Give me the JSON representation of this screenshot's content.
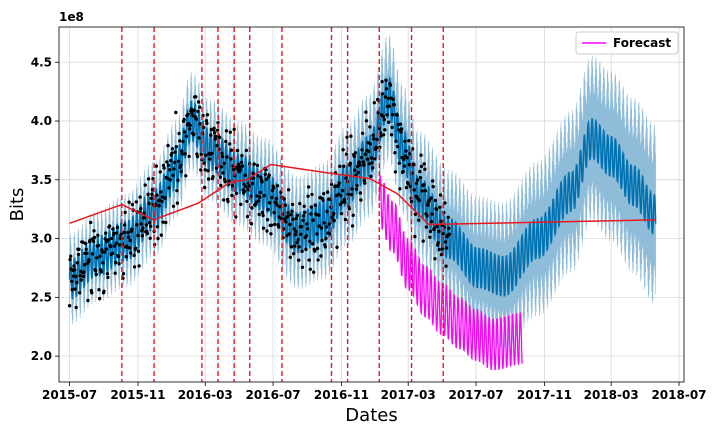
{
  "chart_data": {
    "type": "line",
    "xlabel": "Dates",
    "ylabel": "Bits",
    "y_offset_text": "1e8",
    "y_scale_factor": 100000000,
    "xlim": [
      "2015-06-12",
      "2018-07-10"
    ],
    "ylim": [
      178000000,
      480000000
    ],
    "x_ticks": [
      "2015-07",
      "2015-11",
      "2016-03",
      "2016-07",
      "2016-11",
      "2017-03",
      "2017-07",
      "2017-11",
      "2018-03",
      "2018-07"
    ],
    "x_tick_labels": [
      "2015-07",
      "2015-11",
      "2016-03",
      "2016-07",
      "2016-11",
      "2017-03",
      "2017-07",
      "2017-11",
      "2018-03",
      "2018-07"
    ],
    "y_ticks": [
      200000000,
      250000000,
      300000000,
      350000000,
      400000000,
      450000000
    ],
    "y_tick_labels": [
      "2.0",
      "2.5",
      "3.0",
      "3.5",
      "4.0",
      "4.5"
    ],
    "grid": true,
    "legend": {
      "position": "top-right",
      "entries": [
        {
          "label": "Forecast",
          "color": "#ff00ff"
        }
      ]
    },
    "colors": {
      "model": "#0072b2",
      "uncertainty": "#a6cee3",
      "observed": "#000000",
      "forecast": "#ff00ff",
      "trend": "#e8181d",
      "changepoint": "#e8181d"
    },
    "trend": {
      "x": [
        "2015-07-01",
        "2015-10-03",
        "2015-11-29",
        "2016-02-17",
        "2016-04-15",
        "2016-05-15",
        "2016-06-27",
        "2016-10-05",
        "2016-12-22",
        "2017-02-10",
        "2017-04-07",
        "2018-05-20"
      ],
      "y": [
        313000000,
        329000000,
        316000000,
        330000000,
        348000000,
        350000000,
        363000000,
        356000000,
        351000000,
        338000000,
        312000000,
        316000000
      ]
    },
    "changepoints": [
      "2015-10-03",
      "2015-11-30",
      "2016-02-24",
      "2016-03-24",
      "2016-04-22",
      "2016-05-20",
      "2016-07-17",
      "2016-10-14",
      "2016-11-12",
      "2017-01-08",
      "2017-03-07",
      "2017-05-03"
    ],
    "observed": {
      "start": "2015-07-01",
      "end": "2017-05-14",
      "anchors_x": [
        "2015-07-01",
        "2015-08-20",
        "2015-10-10",
        "2015-12-01",
        "2016-01-10",
        "2016-02-05",
        "2016-03-10",
        "2016-05-01",
        "2016-06-15",
        "2016-08-15",
        "2016-10-01",
        "2016-11-10",
        "2016-12-20",
        "2017-01-25",
        "2017-02-20",
        "2017-03-20",
        "2017-05-14"
      ],
      "anchors_y": [
        265000000,
        285000000,
        298000000,
        325000000,
        360000000,
        400000000,
        375000000,
        355000000,
        340000000,
        305000000,
        315000000,
        345000000,
        370000000,
        420000000,
        375000000,
        335000000,
        300000000
      ]
    },
    "model_fit": {
      "start": "2015-07-01",
      "end": "2018-05-20",
      "anchors_x": [
        "2015-07-01",
        "2015-08-20",
        "2015-10-10",
        "2015-12-01",
        "2016-01-10",
        "2016-02-05",
        "2016-03-10",
        "2016-05-01",
        "2016-06-15",
        "2016-08-15",
        "2016-10-01",
        "2016-11-10",
        "2016-12-20",
        "2017-01-25",
        "2017-02-20",
        "2017-03-20",
        "2017-05-14",
        "2017-07-05",
        "2017-08-20",
        "2017-10-20",
        "2017-12-20",
        "2018-01-25",
        "2018-03-01",
        "2018-04-10",
        "2018-05-20"
      ],
      "anchors_y": [
        265000000,
        285000000,
        298000000,
        325000000,
        360000000,
        400000000,
        375000000,
        355000000,
        340000000,
        305000000,
        315000000,
        345000000,
        370000000,
        420000000,
        375000000,
        335000000,
        300000000,
        275000000,
        268000000,
        300000000,
        340000000,
        385000000,
        370000000,
        345000000,
        320000000
      ],
      "band_half_width_start": 22000000,
      "band_half_width_end": 60000000,
      "weekly_amplitude": 17000000
    },
    "forecast": {
      "start": "2017-01-08",
      "end": "2017-09-22",
      "anchors_x": [
        "2017-01-08",
        "2017-02-01",
        "2017-03-01",
        "2017-04-01",
        "2017-05-01",
        "2017-06-01",
        "2017-07-01",
        "2017-08-01",
        "2017-09-22"
      ],
      "anchors_y": [
        332000000,
        310000000,
        278000000,
        255000000,
        240000000,
        228000000,
        218000000,
        210000000,
        215000000
      ],
      "weekly_amplitude": 22000000
    }
  }
}
